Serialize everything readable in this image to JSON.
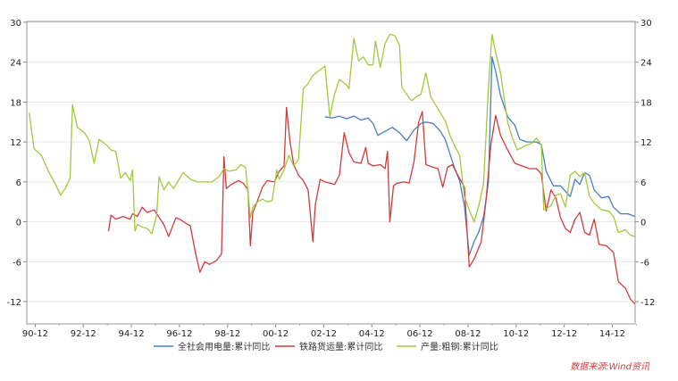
{
  "chart_data": {
    "type": "line",
    "x_ticks": [
      "90-12",
      "92-12",
      "94-12",
      "96-12",
      "98-12",
      "00-12",
      "02-12",
      "04-12",
      "06-12",
      "08-12",
      "10-12",
      "12-12",
      "14-12"
    ],
    "y_ticks": [
      30,
      24,
      18,
      12,
      6,
      0,
      -6,
      -12
    ],
    "ylim": [
      -14,
      30
    ],
    "xlim": [
      1990.6,
      2015.9
    ],
    "grid": true,
    "legend_position": "bottom",
    "source": "数据来源:Wind资讯",
    "series": [
      {
        "name": "全社会用电量:累计同比",
        "color": "#4a7ec4",
        "points": [
          [
            2003.0,
            15.8
          ],
          [
            2003.3,
            15.6
          ],
          [
            2003.6,
            15.9
          ],
          [
            2003.9,
            15.5
          ],
          [
            2004.2,
            15.9
          ],
          [
            2004.5,
            15.3
          ],
          [
            2004.8,
            15.6
          ],
          [
            2005.0,
            14.8
          ],
          [
            2005.2,
            13.0
          ],
          [
            2005.5,
            13.6
          ],
          [
            2005.8,
            14.2
          ],
          [
            2006.1,
            13.4
          ],
          [
            2006.4,
            12.2
          ],
          [
            2006.7,
            13.8
          ],
          [
            2007.0,
            14.8
          ],
          [
            2007.2,
            15.0
          ],
          [
            2007.5,
            14.8
          ],
          [
            2007.8,
            13.6
          ],
          [
            2008.0,
            12.4
          ],
          [
            2008.2,
            10.2
          ],
          [
            2008.4,
            8.0
          ],
          [
            2008.6,
            6.2
          ],
          [
            2008.8,
            2.4
          ],
          [
            2009.0,
            -5.0
          ],
          [
            2009.2,
            -3.0
          ],
          [
            2009.4,
            -1.5
          ],
          [
            2009.6,
            0.8
          ],
          [
            2009.8,
            6.0
          ],
          [
            2009.95,
            24.8
          ],
          [
            2010.1,
            22.6
          ],
          [
            2010.3,
            19.0
          ],
          [
            2010.6,
            15.8
          ],
          [
            2010.9,
            14.5
          ],
          [
            2011.1,
            12.4
          ],
          [
            2011.4,
            12.0
          ],
          [
            2011.8,
            12.0
          ],
          [
            2012.0,
            11.6
          ],
          [
            2012.2,
            7.6
          ],
          [
            2012.5,
            5.4
          ],
          [
            2012.8,
            5.4
          ],
          [
            2013.0,
            4.6
          ],
          [
            2013.2,
            3.8
          ],
          [
            2013.4,
            6.4
          ],
          [
            2013.6,
            5.6
          ],
          [
            2013.8,
            7.4
          ],
          [
            2014.0,
            7.0
          ],
          [
            2014.2,
            4.8
          ],
          [
            2014.5,
            3.6
          ],
          [
            2014.8,
            3.8
          ],
          [
            2015.0,
            2.2
          ],
          [
            2015.3,
            1.2
          ],
          [
            2015.6,
            1.2
          ],
          [
            2015.9,
            0.8
          ]
        ]
      },
      {
        "name": "铁路货运量:累计同比",
        "color": "#cc3e3e",
        "points": [
          [
            1994.0,
            -1.4
          ],
          [
            1994.1,
            1.0
          ],
          [
            1994.3,
            0.4
          ],
          [
            1994.6,
            0.8
          ],
          [
            1994.9,
            0.4
          ],
          [
            1995.0,
            1.2
          ],
          [
            1995.2,
            0.8
          ],
          [
            1995.4,
            2.2
          ],
          [
            1995.6,
            1.4
          ],
          [
            1995.9,
            1.8
          ],
          [
            1996.0,
            1.2
          ],
          [
            1996.3,
            -0.4
          ],
          [
            1996.5,
            -2.2
          ],
          [
            1996.8,
            0.6
          ],
          [
            1997.0,
            0.3
          ],
          [
            1997.2,
            -0.2
          ],
          [
            1997.4,
            -0.6
          ],
          [
            1997.6,
            -4.4
          ],
          [
            1997.8,
            -7.6
          ],
          [
            1998.0,
            -6.0
          ],
          [
            1998.2,
            -6.4
          ],
          [
            1998.5,
            -5.8
          ],
          [
            1998.7,
            -4.8
          ],
          [
            1998.8,
            9.8
          ],
          [
            1998.9,
            5.0
          ],
          [
            1999.1,
            5.6
          ],
          [
            1999.4,
            6.2
          ],
          [
            1999.6,
            5.8
          ],
          [
            1999.8,
            4.8
          ],
          [
            1999.9,
            -3.6
          ],
          [
            2000.0,
            1.4
          ],
          [
            2000.2,
            3.2
          ],
          [
            2000.4,
            5.2
          ],
          [
            2000.6,
            6.2
          ],
          [
            2000.9,
            6.0
          ],
          [
            2001.1,
            7.6
          ],
          [
            2001.3,
            8.4
          ],
          [
            2001.4,
            17.2
          ],
          [
            2001.55,
            12.0
          ],
          [
            2001.7,
            8.6
          ],
          [
            2001.9,
            7.0
          ],
          [
            2002.1,
            6.2
          ],
          [
            2002.3,
            4.8
          ],
          [
            2002.5,
            -3.0
          ],
          [
            2002.6,
            2.6
          ],
          [
            2002.8,
            6.4
          ],
          [
            2003.0,
            6.0
          ],
          [
            2003.2,
            5.8
          ],
          [
            2003.4,
            5.6
          ],
          [
            2003.6,
            7.0
          ],
          [
            2003.8,
            13.4
          ],
          [
            2004.0,
            10.4
          ],
          [
            2004.2,
            9.0
          ],
          [
            2004.5,
            8.8
          ],
          [
            2004.7,
            11.2
          ],
          [
            2004.8,
            8.8
          ],
          [
            2005.0,
            8.4
          ],
          [
            2005.3,
            8.6
          ],
          [
            2005.5,
            8.0
          ],
          [
            2005.6,
            10.6
          ],
          [
            2005.7,
            0.0
          ],
          [
            2005.85,
            5.4
          ],
          [
            2006.0,
            5.8
          ],
          [
            2006.3,
            6.0
          ],
          [
            2006.5,
            5.8
          ],
          [
            2006.7,
            9.0
          ],
          [
            2006.9,
            15.0
          ],
          [
            2007.05,
            16.6
          ],
          [
            2007.2,
            8.6
          ],
          [
            2007.5,
            8.2
          ],
          [
            2007.7,
            8.0
          ],
          [
            2007.9,
            5.2
          ],
          [
            2008.1,
            8.2
          ],
          [
            2008.3,
            8.6
          ],
          [
            2008.5,
            7.2
          ],
          [
            2008.8,
            5.2
          ],
          [
            2009.0,
            -6.8
          ],
          [
            2009.2,
            -5.6
          ],
          [
            2009.5,
            -3.0
          ],
          [
            2009.7,
            3.2
          ],
          [
            2009.9,
            11.6
          ],
          [
            2010.1,
            16.0
          ],
          [
            2010.3,
            13.0
          ],
          [
            2010.6,
            10.8
          ],
          [
            2010.9,
            8.8
          ],
          [
            2011.2,
            8.4
          ],
          [
            2011.5,
            8.0
          ],
          [
            2011.8,
            8.0
          ],
          [
            2012.0,
            7.2
          ],
          [
            2012.2,
            1.6
          ],
          [
            2012.4,
            4.8
          ],
          [
            2012.6,
            3.6
          ],
          [
            2012.8,
            0.6
          ],
          [
            2013.0,
            -1.0
          ],
          [
            2013.2,
            -1.6
          ],
          [
            2013.4,
            0.4
          ],
          [
            2013.6,
            1.4
          ],
          [
            2013.8,
            -1.6
          ],
          [
            2014.0,
            -2.0
          ],
          [
            2014.2,
            0.4
          ],
          [
            2014.4,
            -3.4
          ],
          [
            2014.7,
            -3.6
          ],
          [
            2015.0,
            -4.6
          ],
          [
            2015.2,
            -9.0
          ],
          [
            2015.5,
            -10.0
          ],
          [
            2015.7,
            -11.6
          ],
          [
            2015.9,
            -12.4
          ]
        ]
      },
      {
        "name": "产量:粗钢:累计同比",
        "color": "#a3c83f",
        "points": [
          [
            1990.7,
            16.4
          ],
          [
            1990.9,
            11.0
          ],
          [
            1991.2,
            10.0
          ],
          [
            1991.5,
            7.6
          ],
          [
            1991.8,
            5.6
          ],
          [
            1992.0,
            4.0
          ],
          [
            1992.2,
            5.0
          ],
          [
            1992.4,
            6.6
          ],
          [
            1992.5,
            17.6
          ],
          [
            1992.7,
            14.2
          ],
          [
            1993.0,
            13.4
          ],
          [
            1993.2,
            12.2
          ],
          [
            1993.4,
            8.8
          ],
          [
            1993.6,
            12.4
          ],
          [
            1993.9,
            11.6
          ],
          [
            1994.1,
            10.8
          ],
          [
            1994.3,
            10.6
          ],
          [
            1994.5,
            6.6
          ],
          [
            1994.7,
            7.4
          ],
          [
            1994.9,
            6.2
          ],
          [
            1995.0,
            7.8
          ],
          [
            1995.1,
            -1.4
          ],
          [
            1995.2,
            -0.4
          ],
          [
            1995.4,
            -0.8
          ],
          [
            1995.6,
            -1.0
          ],
          [
            1995.8,
            -1.8
          ],
          [
            1996.0,
            1.0
          ],
          [
            1996.1,
            6.8
          ],
          [
            1996.3,
            4.8
          ],
          [
            1996.5,
            6.0
          ],
          [
            1996.7,
            5.0
          ],
          [
            1996.9,
            6.2
          ],
          [
            1997.1,
            7.4
          ],
          [
            1997.4,
            6.4
          ],
          [
            1997.7,
            6.0
          ],
          [
            1998.0,
            6.0
          ],
          [
            1998.3,
            6.0
          ],
          [
            1998.6,
            6.8
          ],
          [
            1998.8,
            8.0
          ],
          [
            1999.0,
            7.6
          ],
          [
            1999.3,
            7.8
          ],
          [
            1999.5,
            8.6
          ],
          [
            1999.7,
            8.2
          ],
          [
            1999.9,
            0.6
          ],
          [
            2000.0,
            2.2
          ],
          [
            2000.2,
            3.0
          ],
          [
            2000.4,
            3.4
          ],
          [
            2000.6,
            3.0
          ],
          [
            2000.8,
            3.2
          ],
          [
            2001.0,
            7.8
          ],
          [
            2001.1,
            6.4
          ],
          [
            2001.3,
            7.8
          ],
          [
            2001.5,
            10.0
          ],
          [
            2001.7,
            8.4
          ],
          [
            2001.9,
            9.4
          ],
          [
            2002.1,
            20.0
          ],
          [
            2002.3,
            20.8
          ],
          [
            2002.5,
            22.0
          ],
          [
            2002.7,
            22.6
          ],
          [
            2003.0,
            23.4
          ],
          [
            2003.2,
            15.8
          ],
          [
            2003.4,
            19.2
          ],
          [
            2003.6,
            21.4
          ],
          [
            2003.9,
            20.6
          ],
          [
            2004.0,
            20.0
          ],
          [
            2004.2,
            27.6
          ],
          [
            2004.4,
            24.2
          ],
          [
            2004.6,
            24.8
          ],
          [
            2004.8,
            23.6
          ],
          [
            2005.0,
            23.6
          ],
          [
            2005.1,
            27.2
          ],
          [
            2005.3,
            23.2
          ],
          [
            2005.5,
            26.8
          ],
          [
            2005.7,
            28.2
          ],
          [
            2005.9,
            28.0
          ],
          [
            2006.1,
            26.6
          ],
          [
            2006.2,
            20.2
          ],
          [
            2006.4,
            19.2
          ],
          [
            2006.6,
            18.2
          ],
          [
            2006.8,
            18.8
          ],
          [
            2007.0,
            19.2
          ],
          [
            2007.2,
            22.4
          ],
          [
            2007.4,
            18.8
          ],
          [
            2007.6,
            17.6
          ],
          [
            2007.8,
            16.4
          ],
          [
            2008.0,
            15.2
          ],
          [
            2008.2,
            13.0
          ],
          [
            2008.4,
            11.4
          ],
          [
            2008.6,
            10.0
          ],
          [
            2008.8,
            3.8
          ],
          [
            2009.0,
            1.8
          ],
          [
            2009.2,
            0.0
          ],
          [
            2009.4,
            2.4
          ],
          [
            2009.6,
            5.8
          ],
          [
            2009.8,
            20.2
          ],
          [
            2009.95,
            28.2
          ],
          [
            2010.1,
            25.4
          ],
          [
            2010.3,
            22.4
          ],
          [
            2010.6,
            15.0
          ],
          [
            2010.8,
            12.6
          ],
          [
            2011.0,
            10.8
          ],
          [
            2011.3,
            11.4
          ],
          [
            2011.6,
            11.8
          ],
          [
            2011.8,
            12.6
          ],
          [
            2012.0,
            11.6
          ],
          [
            2012.1,
            1.8
          ],
          [
            2012.4,
            2.4
          ],
          [
            2012.6,
            4.0
          ],
          [
            2012.8,
            4.2
          ],
          [
            2013.0,
            2.2
          ],
          [
            2013.2,
            7.0
          ],
          [
            2013.4,
            7.6
          ],
          [
            2013.6,
            6.8
          ],
          [
            2013.8,
            7.4
          ],
          [
            2014.0,
            3.8
          ],
          [
            2014.2,
            2.8
          ],
          [
            2014.5,
            1.8
          ],
          [
            2014.8,
            1.6
          ],
          [
            2015.0,
            0.8
          ],
          [
            2015.2,
            -1.6
          ],
          [
            2015.5,
            -1.2
          ],
          [
            2015.7,
            -2.0
          ],
          [
            2015.9,
            -2.2
          ]
        ]
      }
    ]
  }
}
